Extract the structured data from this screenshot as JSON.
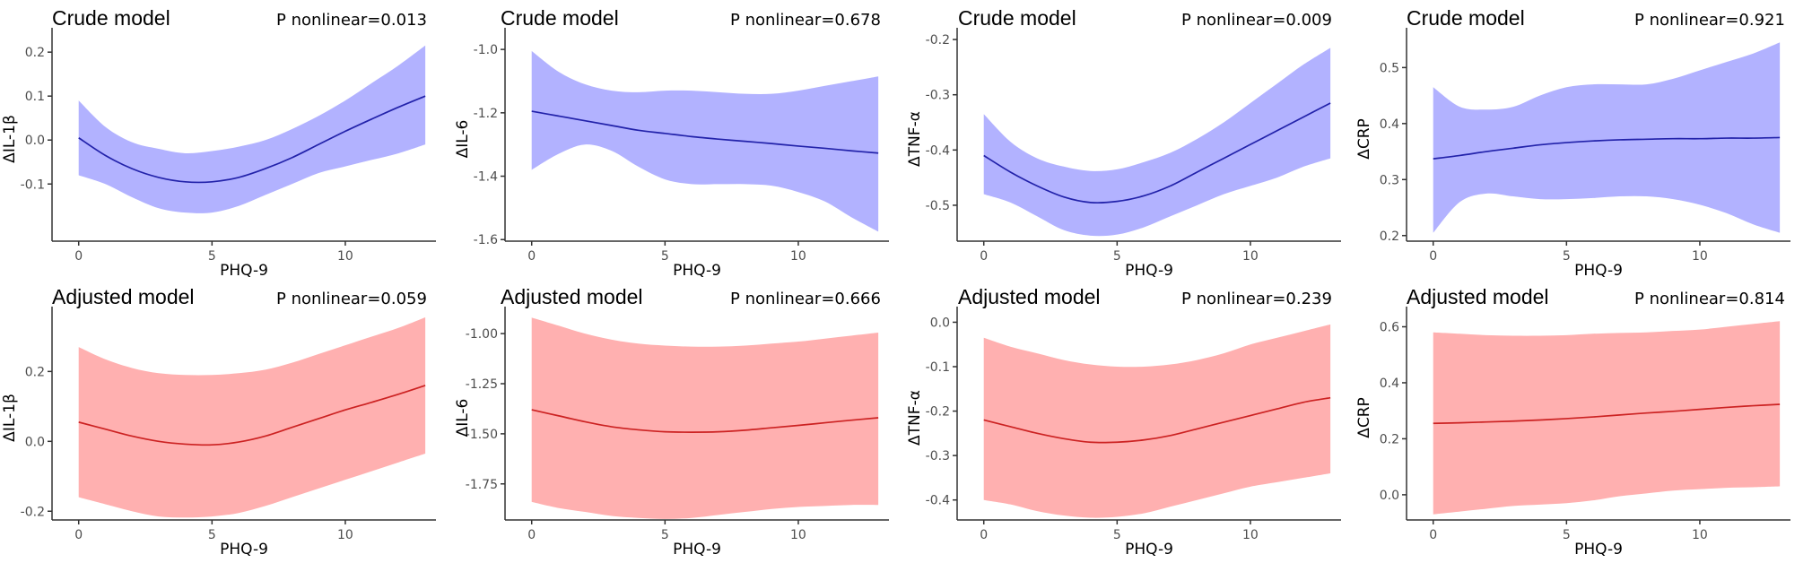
{
  "chart_data": [
    {
      "type": "line",
      "title": "Crude model",
      "annotation": "P nonlinear=0.013",
      "xlabel": "PHQ-9",
      "ylabel": "ΔIL-1β",
      "xlim": [
        -1,
        13.4
      ],
      "ylim": [
        -0.23,
        0.235
      ],
      "xticks": [
        0,
        5,
        10
      ],
      "yticks": [
        -0.1,
        0.0,
        0.1,
        0.2
      ],
      "yticklabels": [
        "-0.1",
        "0.0",
        "0.1",
        "0.2"
      ],
      "band_color": "#b2b2ff",
      "line_color": "#2222aa",
      "x": [
        0,
        1,
        2,
        3,
        4,
        5,
        6,
        7,
        8,
        9,
        10,
        11,
        12,
        13
      ],
      "y": [
        0.005,
        -0.035,
        -0.065,
        -0.085,
        -0.095,
        -0.095,
        -0.085,
        -0.065,
        -0.04,
        -0.01,
        0.02,
        0.048,
        0.075,
        0.1
      ],
      "lower": [
        -0.08,
        -0.1,
        -0.13,
        -0.155,
        -0.165,
        -0.165,
        -0.15,
        -0.125,
        -0.1,
        -0.075,
        -0.06,
        -0.045,
        -0.03,
        -0.01
      ],
      "upper": [
        0.09,
        0.03,
        -0.005,
        -0.02,
        -0.03,
        -0.025,
        -0.015,
        0.0,
        0.025,
        0.055,
        0.09,
        0.13,
        0.17,
        0.215
      ]
    },
    {
      "type": "line",
      "title": "Crude model",
      "annotation": "P nonlinear=0.678",
      "xlabel": "PHQ-9",
      "ylabel": "ΔIL-6",
      "xlim": [
        -1,
        13.4
      ],
      "ylim": [
        -1.605,
        -0.96
      ],
      "xticks": [
        0,
        5,
        10
      ],
      "yticks": [
        -1.6,
        -1.4,
        -1.2,
        -1.0
      ],
      "yticklabels": [
        "-1.6",
        "-1.4",
        "-1.2",
        "-1.0"
      ],
      "band_color": "#b2b2ff",
      "line_color": "#2222aa",
      "x": [
        0,
        1,
        2,
        3,
        4,
        5,
        6,
        7,
        8,
        9,
        10,
        11,
        12,
        13
      ],
      "y": [
        -1.195,
        -1.21,
        -1.225,
        -1.24,
        -1.255,
        -1.265,
        -1.275,
        -1.283,
        -1.29,
        -1.297,
        -1.305,
        -1.312,
        -1.32,
        -1.327
      ],
      "lower": [
        -1.38,
        -1.33,
        -1.3,
        -1.32,
        -1.37,
        -1.41,
        -1.425,
        -1.425,
        -1.425,
        -1.43,
        -1.45,
        -1.48,
        -1.53,
        -1.575
      ],
      "upper": [
        -1.005,
        -1.07,
        -1.11,
        -1.13,
        -1.135,
        -1.13,
        -1.13,
        -1.135,
        -1.14,
        -1.14,
        -1.13,
        -1.115,
        -1.1,
        -1.085
      ]
    },
    {
      "type": "line",
      "title": "Crude model",
      "annotation": "P nonlinear=0.009",
      "xlabel": "PHQ-9",
      "ylabel": "ΔTNF-α",
      "xlim": [
        -1,
        13.4
      ],
      "ylim": [
        -0.565,
        -0.195
      ],
      "xticks": [
        0,
        5,
        10
      ],
      "yticks": [
        -0.5,
        -0.4,
        -0.3,
        -0.2
      ],
      "yticklabels": [
        "-0.5",
        "-0.4",
        "-0.3",
        "-0.2"
      ],
      "band_color": "#b2b2ff",
      "line_color": "#2222aa",
      "x": [
        0,
        1,
        2,
        3,
        4,
        5,
        6,
        7,
        8,
        9,
        10,
        11,
        12,
        13
      ],
      "y": [
        -0.41,
        -0.44,
        -0.465,
        -0.485,
        -0.495,
        -0.493,
        -0.483,
        -0.465,
        -0.44,
        -0.415,
        -0.39,
        -0.365,
        -0.34,
        -0.315
      ],
      "lower": [
        -0.48,
        -0.495,
        -0.52,
        -0.545,
        -0.555,
        -0.553,
        -0.54,
        -0.52,
        -0.5,
        -0.48,
        -0.465,
        -0.45,
        -0.43,
        -0.415
      ],
      "upper": [
        -0.335,
        -0.385,
        -0.415,
        -0.43,
        -0.438,
        -0.435,
        -0.422,
        -0.405,
        -0.38,
        -0.35,
        -0.315,
        -0.28,
        -0.245,
        -0.215
      ]
    },
    {
      "type": "line",
      "title": "Crude model",
      "annotation": "P nonlinear=0.921",
      "xlabel": "PHQ-9",
      "ylabel": "ΔCRP",
      "xlim": [
        -1,
        13.4
      ],
      "ylim": [
        0.19,
        0.555
      ],
      "xticks": [
        0,
        5,
        10
      ],
      "yticks": [
        0.2,
        0.3,
        0.4,
        0.5
      ],
      "yticklabels": [
        "0.2",
        "0.3",
        "0.4",
        "0.5"
      ],
      "band_color": "#b2b2ff",
      "line_color": "#2222aa",
      "x": [
        0,
        1,
        2,
        3,
        4,
        5,
        6,
        7,
        8,
        9,
        10,
        11,
        12,
        13
      ],
      "y": [
        0.337,
        0.343,
        0.35,
        0.356,
        0.362,
        0.366,
        0.369,
        0.371,
        0.372,
        0.373,
        0.373,
        0.374,
        0.374,
        0.375
      ],
      "lower": [
        0.205,
        0.26,
        0.275,
        0.27,
        0.265,
        0.265,
        0.267,
        0.27,
        0.27,
        0.265,
        0.255,
        0.24,
        0.22,
        0.205
      ],
      "upper": [
        0.465,
        0.43,
        0.425,
        0.43,
        0.45,
        0.465,
        0.47,
        0.47,
        0.47,
        0.48,
        0.495,
        0.51,
        0.525,
        0.545
      ]
    },
    {
      "type": "line",
      "title": "Adjusted model",
      "annotation": "P nonlinear=0.059",
      "xlabel": "PHQ-9",
      "ylabel": "ΔIL-1β",
      "xlim": [
        -1,
        13.4
      ],
      "ylim": [
        -0.225,
        0.36
      ],
      "xticks": [
        0,
        5,
        10
      ],
      "yticks": [
        -0.2,
        0.0,
        0.2
      ],
      "yticklabels": [
        "-0.2",
        "0.0",
        "0.2"
      ],
      "band_color": "#ffb0b0",
      "line_color": "#cc2222",
      "x": [
        0,
        1,
        2,
        3,
        4,
        5,
        6,
        7,
        8,
        9,
        10,
        11,
        12,
        13
      ],
      "y": [
        0.055,
        0.035,
        0.015,
        0.0,
        -0.008,
        -0.01,
        -0.002,
        0.015,
        0.04,
        0.065,
        0.09,
        0.112,
        0.135,
        0.16
      ],
      "lower": [
        -0.16,
        -0.18,
        -0.2,
        -0.215,
        -0.218,
        -0.215,
        -0.205,
        -0.185,
        -0.16,
        -0.135,
        -0.11,
        -0.085,
        -0.06,
        -0.035
      ],
      "upper": [
        0.27,
        0.235,
        0.21,
        0.195,
        0.19,
        0.19,
        0.195,
        0.205,
        0.225,
        0.25,
        0.275,
        0.3,
        0.325,
        0.355
      ]
    },
    {
      "type": "line",
      "title": "Adjusted model",
      "annotation": "P nonlinear=0.666",
      "xlabel": "PHQ-9",
      "ylabel": "ΔIL-6",
      "xlim": [
        -1,
        13.4
      ],
      "ylim": [
        -1.93,
        -0.91
      ],
      "xticks": [
        0,
        5,
        10
      ],
      "yticks": [
        -1.75,
        -1.5,
        -1.25,
        -1.0
      ],
      "yticklabels": [
        "-1.75",
        "-1.50",
        "-1.25",
        "-1.00"
      ],
      "band_color": "#ffb0b0",
      "line_color": "#cc2222",
      "x": [
        0,
        1,
        2,
        3,
        4,
        5,
        6,
        7,
        8,
        9,
        10,
        11,
        12,
        13
      ],
      "y": [
        -1.38,
        -1.41,
        -1.44,
        -1.465,
        -1.48,
        -1.49,
        -1.492,
        -1.49,
        -1.482,
        -1.47,
        -1.458,
        -1.445,
        -1.432,
        -1.42
      ],
      "lower": [
        -1.84,
        -1.87,
        -1.89,
        -1.91,
        -1.92,
        -1.925,
        -1.92,
        -1.905,
        -1.89,
        -1.875,
        -1.865,
        -1.86,
        -1.855,
        -1.855
      ],
      "upper": [
        -0.92,
        -0.96,
        -1.0,
        -1.03,
        -1.05,
        -1.06,
        -1.065,
        -1.065,
        -1.06,
        -1.05,
        -1.04,
        -1.025,
        -1.01,
        -0.995
      ]
    },
    {
      "type": "line",
      "title": "Adjusted model",
      "annotation": "P nonlinear=0.239",
      "xlabel": "PHQ-9",
      "ylabel": "ΔTNF-α",
      "xlim": [
        -1,
        13.4
      ],
      "ylim": [
        -0.445,
        0.015
      ],
      "xticks": [
        0,
        5,
        10
      ],
      "yticks": [
        -0.4,
        -0.3,
        -0.2,
        -0.1,
        0.0
      ],
      "yticklabels": [
        "-0.4",
        "-0.3",
        "-0.2",
        "-0.1",
        "0.0"
      ],
      "band_color": "#ffb0b0",
      "line_color": "#cc2222",
      "x": [
        0,
        1,
        2,
        3,
        4,
        5,
        6,
        7,
        8,
        9,
        10,
        11,
        12,
        13
      ],
      "y": [
        -0.22,
        -0.235,
        -0.25,
        -0.262,
        -0.27,
        -0.27,
        -0.265,
        -0.255,
        -0.24,
        -0.225,
        -0.21,
        -0.195,
        -0.18,
        -0.17
      ],
      "lower": [
        -0.4,
        -0.41,
        -0.425,
        -0.435,
        -0.44,
        -0.438,
        -0.43,
        -0.415,
        -0.4,
        -0.385,
        -0.37,
        -0.36,
        -0.35,
        -0.34
      ],
      "upper": [
        -0.035,
        -0.055,
        -0.07,
        -0.085,
        -0.095,
        -0.1,
        -0.1,
        -0.095,
        -0.085,
        -0.07,
        -0.05,
        -0.035,
        -0.02,
        -0.005
      ]
    },
    {
      "type": "line",
      "title": "Adjusted model",
      "annotation": "P nonlinear=0.814",
      "xlabel": "PHQ-9",
      "ylabel": "ΔCRP",
      "xlim": [
        -1,
        13.4
      ],
      "ylim": [
        -0.09,
        0.64
      ],
      "xticks": [
        0,
        5,
        10
      ],
      "yticks": [
        0.0,
        0.2,
        0.4,
        0.6
      ],
      "yticklabels": [
        "0.0",
        "0.2",
        "0.4",
        "0.6"
      ],
      "band_color": "#ffb0b0",
      "line_color": "#cc2222",
      "x": [
        0,
        1,
        2,
        3,
        4,
        5,
        6,
        7,
        8,
        9,
        10,
        11,
        12,
        13
      ],
      "y": [
        0.255,
        0.257,
        0.26,
        0.263,
        0.267,
        0.272,
        0.278,
        0.285,
        0.292,
        0.298,
        0.305,
        0.312,
        0.318,
        0.323
      ],
      "lower": [
        -0.07,
        -0.06,
        -0.05,
        -0.04,
        -0.035,
        -0.03,
        -0.02,
        -0.005,
        0.005,
        0.015,
        0.02,
        0.025,
        0.027,
        0.03
      ],
      "upper": [
        0.58,
        0.575,
        0.57,
        0.568,
        0.568,
        0.57,
        0.575,
        0.578,
        0.58,
        0.585,
        0.59,
        0.6,
        0.61,
        0.62
      ]
    }
  ]
}
